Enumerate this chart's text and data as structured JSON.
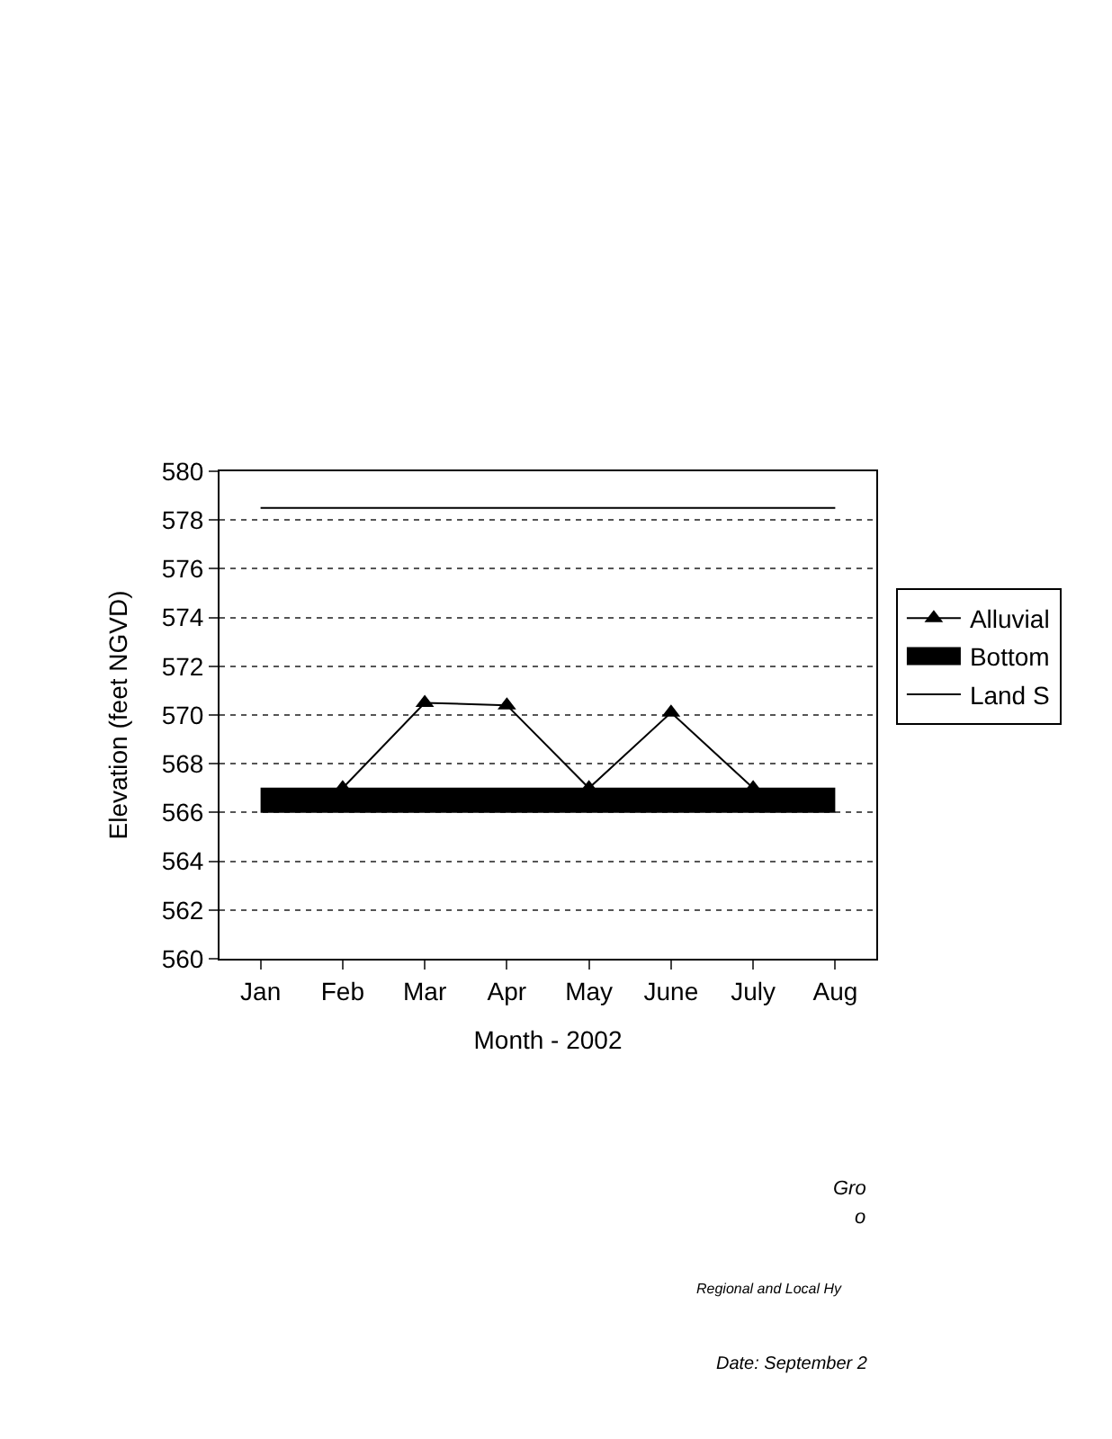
{
  "chart_data": {
    "type": "line",
    "categories": [
      "Jan",
      "Feb",
      "Mar",
      "Apr",
      "May",
      "June",
      "July",
      "Aug"
    ],
    "series": [
      {
        "name": "Alluvial",
        "color": "#000000",
        "marker": "triangle",
        "values": [
          null,
          567,
          570.5,
          570.4,
          567,
          570.1,
          567,
          null
        ]
      },
      {
        "name": "Bottom",
        "color": "#000000",
        "marker": "none",
        "values": [
          566.5,
          566.5,
          566.5,
          566.5,
          566.5,
          566.5,
          566.5,
          566.5
        ]
      },
      {
        "name": "Land S",
        "color": "#000000",
        "marker": "none",
        "values": [
          578.5,
          578.5,
          578.5,
          578.5,
          578.5,
          578.5,
          578.5,
          578.5
        ]
      }
    ],
    "xlabel": "Month - 2002",
    "ylabel": "Elevation (feet NGVD)",
    "ylim": [
      560,
      580
    ],
    "yticks": [
      560,
      562,
      564,
      566,
      568,
      570,
      572,
      574,
      576,
      578,
      580
    ],
    "grid": "y",
    "legend": "right",
    "annotations": [
      "Gro",
      "o",
      "Regional and Local Hy",
      "Date: September 2"
    ]
  }
}
